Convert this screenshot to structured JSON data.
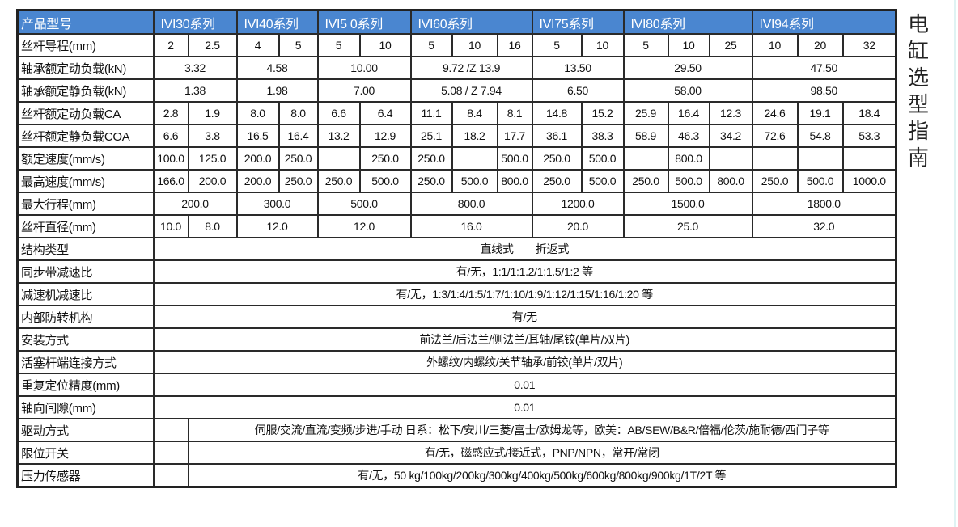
{
  "side_title": "电缸选型指南",
  "colors": {
    "header_bg": "#4a86d0",
    "header_text": "#ffffff",
    "border": "#2a2a2a"
  },
  "header": {
    "label": "产品型号",
    "series": [
      "IVI30系列",
      "IVI40系列",
      "IVI5 0系列",
      "IVI60系列",
      "IVI75系列",
      "IVI80系列",
      "IVI94系列"
    ]
  },
  "per_column_rows": [
    {
      "label": "丝杆导程(mm)",
      "values": [
        "2",
        "2.5",
        "4",
        "5",
        "5",
        "10",
        "5",
        "10",
        "16",
        "5",
        "10",
        "5",
        "10",
        "25",
        "10",
        "20",
        "32"
      ]
    },
    {
      "label": "丝杆额定动负载CA",
      "values": [
        "2.8",
        "1.9",
        "8.0",
        "8.0",
        "6.6",
        "6.4",
        "11.1",
        "8.4",
        "8.1",
        "14.8",
        "15.2",
        "25.9",
        "16.4",
        "12.3",
        "24.6",
        "19.1",
        "18.4"
      ]
    },
    {
      "label": "丝杆额定静负载COA",
      "values": [
        "6.6",
        "3.8",
        "16.5",
        "16.4",
        "13.2",
        "12.9",
        "25.1",
        "18.2",
        "17.7",
        "36.1",
        "38.3",
        "58.9",
        "46.3",
        "34.2",
        "72.6",
        "54.8",
        "53.3"
      ]
    },
    {
      "label": "额定速度(mm/s)",
      "values": [
        "100.0",
        "125.0",
        "200.0",
        "250.0",
        "",
        "250.0",
        "250.0",
        "",
        "500.0",
        "250.0",
        "500.0",
        "",
        "800.0",
        "",
        "",
        "",
        ""
      ]
    },
    {
      "label": "最高速度(mm/s)",
      "values": [
        "166.0",
        "200.0",
        "200.0",
        "250.0",
        "250.0",
        "500.0",
        "250.0",
        "500.0",
        "800.0",
        "250.0",
        "500.0",
        "250.0",
        "500.0",
        "800.0",
        "250.0",
        "500.0",
        "1000.0"
      ]
    }
  ],
  "per_series_rows": [
    {
      "label": "轴承额定动负载(kN)",
      "values": [
        "3.32",
        "4.58",
        "10.00",
        "9.72 /Z 13.9",
        "13.50",
        "29.50",
        "47.50"
      ]
    },
    {
      "label": "轴承额定静负载(kN)",
      "values": [
        "1.38",
        "1.98",
        "7.00",
        "5.08 / Z 7.94",
        "6.50",
        "58.00",
        "98.50"
      ]
    },
    {
      "label": "最大行程(mm)",
      "values": [
        "200.0",
        "300.0",
        "500.0",
        "800.0",
        "1200.0",
        "1500.0",
        "1800.0"
      ]
    }
  ],
  "screw_diameter": {
    "label": "丝杆直径(mm)",
    "values": [
      "10.0",
      "8.0",
      "12.0",
      "12.0",
      "16.0",
      "20.0",
      "25.0",
      "32.0"
    ]
  },
  "common_rows": [
    {
      "label": "结构类型",
      "value": "直线式　　折返式"
    },
    {
      "label": "同步带减速比",
      "value": "有/无，1:1/1:1.2/1:1.5/1:2 等"
    },
    {
      "label": "减速机减速比",
      "value": "有/无，1:3/1:4/1:5/1:7/1:10/1:9/1:12/1:15/1:16/1:20 等"
    },
    {
      "label": "内部防转机构",
      "value": "有/无"
    },
    {
      "label": "安装方式",
      "value": "前法兰/后法兰/侧法兰/耳轴/尾铰(单片/双片)"
    },
    {
      "label": "活塞杆端连接方式",
      "value": "外螺纹/内螺纹/关节轴承/前铰(单片/双片)"
    },
    {
      "label": "重复定位精度(mm)",
      "value": "0.01"
    },
    {
      "label": "轴向间隙(mm)",
      "value": "0.01"
    }
  ],
  "split_rows": [
    {
      "label": "驱动方式",
      "value": "伺服/交流/直流/变频/步进/手动 日系：松下/安川/三菱/富士/欧姆龙等，欧美：AB/SEW/B&R/倍福/伦茨/施耐德/西门子等"
    },
    {
      "label": "限位开关",
      "value": "有/无，磁感应式/接近式，PNP/NPN，常开/常闭"
    },
    {
      "label": "压力传感器",
      "value": "有/无，50 kg/100kg/200kg/300kg/400kg/500kg/600kg/800kg/900kg/1T/2T 等"
    }
  ]
}
